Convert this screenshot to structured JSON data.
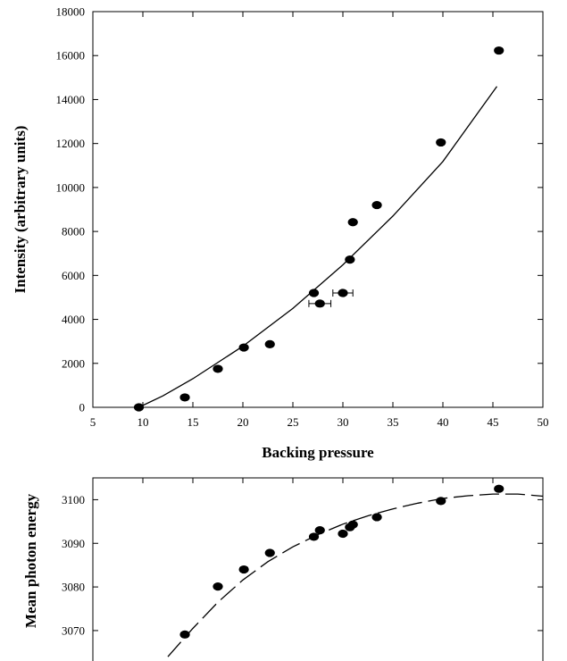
{
  "chart_data": [
    {
      "type": "scatter",
      "title": "",
      "xlabel": "Backing pressure",
      "ylabel": "Intensity (arbitrary units)",
      "xlim": [
        5,
        50
      ],
      "ylim": [
        0,
        18000
      ],
      "x_ticks": [
        "5",
        "10",
        "15",
        "20",
        "25",
        "30",
        "35",
        "40",
        "45",
        "50"
      ],
      "y_ticks": [
        "0",
        "2000",
        "4000",
        "6000",
        "8000",
        "10000",
        "12000",
        "14000",
        "16000",
        "18000"
      ],
      "grid": false,
      "points": [
        {
          "x": 9.6,
          "y": 0
        },
        {
          "x": 14.2,
          "y": 450
        },
        {
          "x": 17.5,
          "y": 1750
        },
        {
          "x": 20.1,
          "y": 2720
        },
        {
          "x": 22.7,
          "y": 2870
        },
        {
          "x": 27.1,
          "y": 5200
        },
        {
          "x": 27.7,
          "y": 4720,
          "xerr": 1.1
        },
        {
          "x": 30.0,
          "y": 5200,
          "xerr": 1.0
        },
        {
          "x": 30.7,
          "y": 6720
        },
        {
          "x": 31.0,
          "y": 8420
        },
        {
          "x": 33.4,
          "y": 9200
        },
        {
          "x": 39.8,
          "y": 12050
        },
        {
          "x": 45.6,
          "y": 16230
        }
      ],
      "fit_curve": {
        "style": "solid",
        "points": [
          [
            9.6,
            0
          ],
          [
            12,
            520
          ],
          [
            15,
            1300
          ],
          [
            20,
            2780
          ],
          [
            25,
            4500
          ],
          [
            30,
            6480
          ],
          [
            35,
            8700
          ],
          [
            40,
            11180
          ],
          [
            45.4,
            14600
          ]
        ]
      }
    },
    {
      "type": "scatter",
      "title": "",
      "xlabel": "",
      "ylabel": "Mean photon energy",
      "xlim": [
        5,
        50
      ],
      "ylim": [
        3062,
        3105
      ],
      "y_ticks": [
        "3070",
        "3080",
        "3090",
        "3100"
      ],
      "grid": false,
      "points": [
        {
          "x": 14.2,
          "y": 3069.1
        },
        {
          "x": 17.5,
          "y": 3080.1
        },
        {
          "x": 20.1,
          "y": 3084.0
        },
        {
          "x": 22.7,
          "y": 3087.8
        },
        {
          "x": 27.1,
          "y": 3091.5
        },
        {
          "x": 27.7,
          "y": 3093.0
        },
        {
          "x": 30.0,
          "y": 3092.2
        },
        {
          "x": 30.7,
          "y": 3093.7
        },
        {
          "x": 31.0,
          "y": 3094.3
        },
        {
          "x": 33.4,
          "y": 3096.0
        },
        {
          "x": 39.8,
          "y": 3099.7
        },
        {
          "x": 45.6,
          "y": 3102.5
        }
      ],
      "fit_curve": {
        "style": "dashed",
        "points": [
          [
            12.5,
            3064
          ],
          [
            15,
            3070.5
          ],
          [
            17.5,
            3076.5
          ],
          [
            20,
            3081.6
          ],
          [
            22.5,
            3085.8
          ],
          [
            25,
            3089.2
          ],
          [
            27.5,
            3092.0
          ],
          [
            30,
            3094.4
          ],
          [
            32.5,
            3096.3
          ],
          [
            35,
            3097.9
          ],
          [
            37.5,
            3099.2
          ],
          [
            40,
            3100.3
          ],
          [
            42.5,
            3100.9
          ],
          [
            45,
            3101.3
          ],
          [
            47.5,
            3101.3
          ],
          [
            50,
            3100.8
          ]
        ]
      }
    }
  ]
}
